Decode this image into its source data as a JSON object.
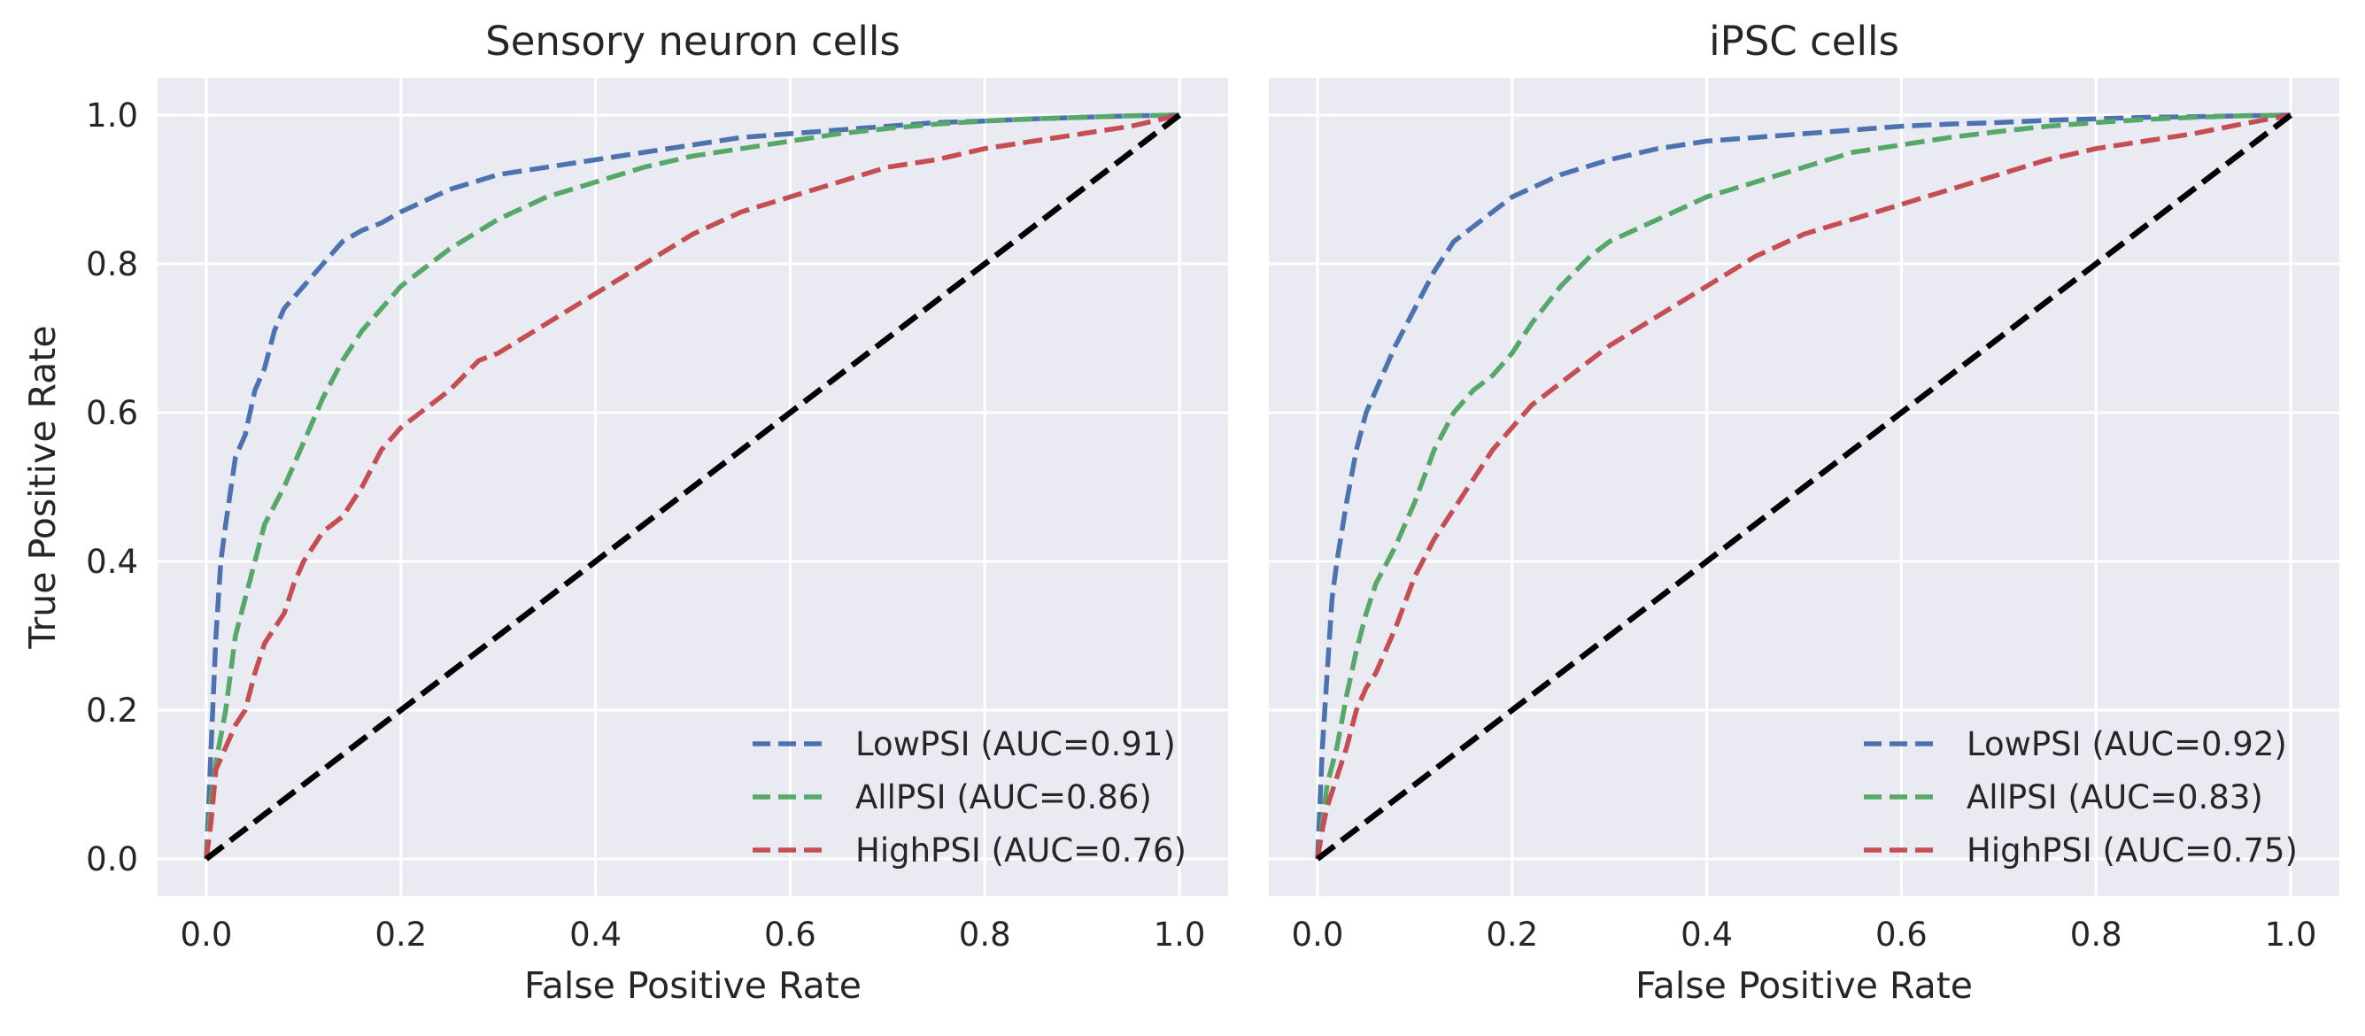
{
  "chart_data": [
    {
      "type": "line",
      "title": "Sensory neuron cells",
      "xlabel": "False Positive Rate",
      "ylabel": "True Positive Rate",
      "xlim": [
        -0.05,
        1.05
      ],
      "ylim": [
        -0.05,
        1.05
      ],
      "xticks": [
        "0.0",
        "0.2",
        "0.4",
        "0.6",
        "0.8",
        "1.0"
      ],
      "yticks": [
        "0.0",
        "0.2",
        "0.4",
        "0.6",
        "0.8",
        "1.0"
      ],
      "grid": true,
      "legend_position": "lower right",
      "series": [
        {
          "name": "LowPSI (AUC=0.91)",
          "color": "#4c72b0",
          "x": [
            0,
            0.005,
            0.01,
            0.015,
            0.02,
            0.03,
            0.04,
            0.05,
            0.06,
            0.07,
            0.08,
            0.1,
            0.12,
            0.14,
            0.16,
            0.18,
            0.2,
            0.25,
            0.3,
            0.35,
            0.4,
            0.45,
            0.5,
            0.55,
            0.6,
            0.65,
            0.7,
            0.75,
            0.8,
            0.85,
            0.9,
            0.95,
            1.0
          ],
          "y": [
            0,
            0.15,
            0.3,
            0.4,
            0.45,
            0.54,
            0.57,
            0.63,
            0.66,
            0.71,
            0.74,
            0.77,
            0.8,
            0.83,
            0.845,
            0.855,
            0.87,
            0.9,
            0.92,
            0.93,
            0.94,
            0.95,
            0.96,
            0.97,
            0.975,
            0.98,
            0.985,
            0.99,
            0.992,
            0.995,
            0.997,
            0.999,
            1.0
          ]
        },
        {
          "name": "AllPSI (AUC=0.86)",
          "color": "#55a868",
          "x": [
            0,
            0.005,
            0.01,
            0.02,
            0.03,
            0.04,
            0.05,
            0.06,
            0.08,
            0.1,
            0.12,
            0.14,
            0.16,
            0.18,
            0.2,
            0.25,
            0.3,
            0.35,
            0.4,
            0.45,
            0.5,
            0.55,
            0.6,
            0.65,
            0.7,
            0.75,
            0.8,
            0.85,
            0.9,
            0.95,
            1.0
          ],
          "y": [
            0,
            0.08,
            0.13,
            0.2,
            0.3,
            0.35,
            0.4,
            0.45,
            0.5,
            0.56,
            0.62,
            0.67,
            0.71,
            0.74,
            0.77,
            0.82,
            0.86,
            0.89,
            0.91,
            0.93,
            0.945,
            0.955,
            0.965,
            0.975,
            0.982,
            0.988,
            0.992,
            0.995,
            0.997,
            0.999,
            1.0
          ]
        },
        {
          "name": "HighPSI (AUC=0.76)",
          "color": "#c44e52",
          "x": [
            0,
            0.005,
            0.01,
            0.02,
            0.03,
            0.04,
            0.05,
            0.06,
            0.07,
            0.08,
            0.09,
            0.1,
            0.12,
            0.14,
            0.16,
            0.18,
            0.2,
            0.22,
            0.25,
            0.28,
            0.3,
            0.35,
            0.4,
            0.45,
            0.5,
            0.55,
            0.6,
            0.65,
            0.7,
            0.75,
            0.8,
            0.85,
            0.9,
            0.95,
            1.0
          ],
          "y": [
            0,
            0.05,
            0.12,
            0.15,
            0.18,
            0.2,
            0.25,
            0.29,
            0.31,
            0.33,
            0.37,
            0.4,
            0.44,
            0.46,
            0.5,
            0.55,
            0.58,
            0.6,
            0.63,
            0.67,
            0.68,
            0.72,
            0.76,
            0.8,
            0.84,
            0.87,
            0.89,
            0.91,
            0.93,
            0.94,
            0.955,
            0.965,
            0.975,
            0.985,
            1.0
          ]
        }
      ]
    },
    {
      "type": "line",
      "title": "iPSC cells",
      "xlabel": "False Positive Rate",
      "ylabel": "",
      "xlim": [
        -0.05,
        1.05
      ],
      "ylim": [
        -0.05,
        1.05
      ],
      "xticks": [
        "0.0",
        "0.2",
        "0.4",
        "0.6",
        "0.8",
        "1.0"
      ],
      "yticks": [],
      "grid": true,
      "legend_position": "lower right",
      "series": [
        {
          "name": "LowPSI (AUC=0.92)",
          "color": "#4c72b0",
          "x": [
            0,
            0.005,
            0.01,
            0.015,
            0.02,
            0.03,
            0.04,
            0.05,
            0.06,
            0.07,
            0.08,
            0.1,
            0.12,
            0.14,
            0.16,
            0.18,
            0.2,
            0.25,
            0.3,
            0.35,
            0.4,
            0.45,
            0.5,
            0.55,
            0.6,
            0.65,
            0.7,
            0.75,
            0.8,
            0.85,
            0.9,
            0.95,
            1.0
          ],
          "y": [
            0,
            0.15,
            0.25,
            0.35,
            0.4,
            0.48,
            0.55,
            0.6,
            0.63,
            0.66,
            0.69,
            0.74,
            0.79,
            0.83,
            0.85,
            0.87,
            0.89,
            0.92,
            0.94,
            0.955,
            0.965,
            0.97,
            0.975,
            0.98,
            0.985,
            0.988,
            0.99,
            0.993,
            0.995,
            0.997,
            0.998,
            0.999,
            1.0
          ]
        },
        {
          "name": "AllPSI (AUC=0.83)",
          "color": "#55a868",
          "x": [
            0,
            0.005,
            0.01,
            0.02,
            0.03,
            0.04,
            0.05,
            0.06,
            0.08,
            0.1,
            0.12,
            0.14,
            0.16,
            0.18,
            0.2,
            0.22,
            0.25,
            0.28,
            0.3,
            0.35,
            0.4,
            0.45,
            0.5,
            0.55,
            0.6,
            0.65,
            0.7,
            0.75,
            0.8,
            0.85,
            0.9,
            0.95,
            1.0
          ],
          "y": [
            0,
            0.05,
            0.1,
            0.15,
            0.22,
            0.28,
            0.33,
            0.37,
            0.42,
            0.48,
            0.55,
            0.6,
            0.63,
            0.65,
            0.68,
            0.72,
            0.77,
            0.81,
            0.83,
            0.86,
            0.89,
            0.91,
            0.93,
            0.95,
            0.96,
            0.97,
            0.978,
            0.985,
            0.99,
            0.994,
            0.997,
            0.999,
            1.0
          ]
        },
        {
          "name": "HighPSI (AUC=0.75)",
          "color": "#c44e52",
          "x": [
            0,
            0.005,
            0.01,
            0.02,
            0.03,
            0.04,
            0.05,
            0.06,
            0.08,
            0.1,
            0.12,
            0.14,
            0.16,
            0.18,
            0.2,
            0.22,
            0.25,
            0.28,
            0.3,
            0.35,
            0.4,
            0.45,
            0.5,
            0.55,
            0.6,
            0.65,
            0.7,
            0.75,
            0.8,
            0.85,
            0.9,
            0.95,
            1.0
          ],
          "y": [
            0,
            0.04,
            0.07,
            0.11,
            0.15,
            0.2,
            0.23,
            0.25,
            0.31,
            0.38,
            0.43,
            0.47,
            0.51,
            0.55,
            0.58,
            0.61,
            0.64,
            0.67,
            0.69,
            0.73,
            0.77,
            0.81,
            0.84,
            0.86,
            0.88,
            0.9,
            0.92,
            0.94,
            0.955,
            0.965,
            0.975,
            0.988,
            1.0
          ]
        }
      ]
    }
  ]
}
